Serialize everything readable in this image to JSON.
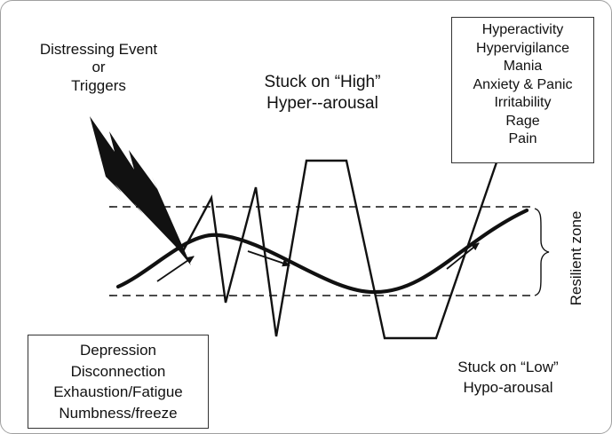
{
  "trigger": {
    "line1": "Distressing Event",
    "line2": "or",
    "line3": "Triggers"
  },
  "high": {
    "line1": "Stuck on “High”",
    "line2": "Hyper--arousal"
  },
  "hyper_symptoms": [
    "Hyperactivity",
    "Hypervigilance",
    "Mania",
    "Anxiety & Panic",
    "Irritability",
    "Rage",
    "Pain"
  ],
  "hypo_symptoms": [
    "Depression",
    "Disconnection",
    "Exhaustion/Fatigue",
    "Numbness/freeze"
  ],
  "low": {
    "line1": "Stuck on “Low”",
    "line2": "Hypo-arousal"
  },
  "zone": {
    "label": "Resilient zone"
  }
}
